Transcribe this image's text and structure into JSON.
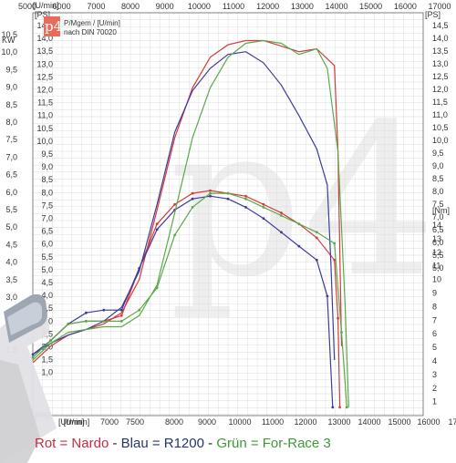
{
  "chart_data": {
    "type": "line",
    "top_axis_unit": "[U/min]",
    "bottom_axis_unit": "[U/min]",
    "left_axis_unit": "KW",
    "left_axis_unit2": "[PS]",
    "right_axis_unit": "[PS]",
    "torque_axis_unit": "[Nm]",
    "logo": "p4",
    "info_line1": "P/Mgem / [U/min]",
    "info_line2": "nach DIN 70020",
    "top_ticks": [
      "5000",
      "6000",
      "7000",
      "8000",
      "9000",
      "10000",
      "11000",
      "12000",
      "13000",
      "14000",
      "15000",
      "16000",
      "17000"
    ],
    "bottom_ticks": [
      "[U/min]",
      "7000",
      "7500",
      "8000",
      "9000",
      "10000",
      "11000",
      "12000",
      "13000",
      "14000",
      "15000",
      "16000",
      "17000"
    ],
    "left_ps_ticks": [
      "14,5",
      "14,0",
      "13,5",
      "13,0",
      "12,5",
      "12,0",
      "11,5",
      "11,0",
      "10,5",
      "10,0",
      "9,5",
      "9,0",
      "8,5",
      "8,0",
      "7,5",
      "7,0",
      "6,5",
      "6,0",
      "5,5",
      "5,0",
      "4,5",
      "4,0",
      "3,5",
      "3,0",
      "2,5",
      "2,0",
      "1,5",
      "1,0"
    ],
    "left_kw_ticks": [
      "10,5",
      "10,0",
      "9,5",
      "9,0",
      "8,5",
      "8,0",
      "7,5",
      "7,0",
      "6,5",
      "6,0",
      "5,5",
      "5,0",
      "4,5",
      "4,0",
      "3,5",
      "3,0",
      "2,5",
      "2,0",
      "1,5",
      "1,0"
    ],
    "right_ps_ticks": [
      "14,5",
      "14,0",
      "13,5",
      "13,0",
      "12,5",
      "12,0",
      "11,5",
      "11,0",
      "10,5",
      "10,0",
      "9,5",
      "9,0",
      "8,5",
      "8,0",
      "7,5",
      "7,0",
      "6,5",
      "6,0",
      "5,5",
      "5,0"
    ],
    "right_nm_ticks": [
      "14",
      "13",
      "12",
      "11",
      "10",
      "9",
      "8",
      "7",
      "6",
      "5",
      "4",
      "3",
      "2",
      "1"
    ],
    "x_range": [
      6000,
      17000
    ],
    "power_range_ps": [
      0,
      14.5
    ],
    "torque_range_nm": [
      0,
      14.5
    ],
    "grid": true,
    "series": [
      {
        "color": "#d63a3a",
        "power": [
          [
            6000,
            1.9
          ],
          [
            6500,
            2.5
          ],
          [
            7000,
            2.9
          ],
          [
            7500,
            3.1
          ],
          [
            8000,
            3.3
          ],
          [
            8500,
            3.7
          ],
          [
            9000,
            4.9
          ],
          [
            9500,
            7.4
          ],
          [
            10000,
            10.0
          ],
          [
            10500,
            11.8
          ],
          [
            11000,
            12.9
          ],
          [
            11500,
            13.35
          ],
          [
            12000,
            13.5
          ],
          [
            12500,
            13.5
          ],
          [
            13000,
            13.3
          ],
          [
            13500,
            13.1
          ],
          [
            14000,
            13.2
          ],
          [
            14500,
            12.6
          ],
          [
            14600,
            9.5
          ],
          [
            14700,
            2.5
          ]
        ],
        "torque": [
          [
            6000,
            2.1
          ],
          [
            6500,
            2.7
          ],
          [
            7000,
            3.3
          ],
          [
            7500,
            3.4
          ],
          [
            8000,
            3.4
          ],
          [
            8500,
            3.6
          ],
          [
            9000,
            5.3
          ],
          [
            9500,
            6.9
          ],
          [
            10000,
            7.6
          ],
          [
            10500,
            8.0
          ],
          [
            11000,
            8.1
          ],
          [
            11500,
            8.0
          ],
          [
            12000,
            7.9
          ],
          [
            12500,
            7.6
          ],
          [
            13000,
            7.3
          ],
          [
            13500,
            6.9
          ],
          [
            14000,
            6.4
          ],
          [
            14500,
            5.6
          ],
          [
            14600,
            3.5
          ],
          [
            14650,
            0.3
          ]
        ]
      },
      {
        "color": "#3c3c9c",
        "power": [
          [
            6000,
            2.2
          ],
          [
            6500,
            2.6
          ],
          [
            7000,
            2.9
          ],
          [
            7500,
            3.1
          ],
          [
            8000,
            3.4
          ],
          [
            8500,
            3.9
          ],
          [
            9000,
            5.2
          ],
          [
            9500,
            7.6
          ],
          [
            10000,
            10.2
          ],
          [
            10500,
            11.7
          ],
          [
            11000,
            12.5
          ],
          [
            11500,
            13.0
          ],
          [
            12000,
            13.1
          ],
          [
            12500,
            12.7
          ],
          [
            13000,
            11.9
          ],
          [
            13500,
            10.8
          ],
          [
            14000,
            9.6
          ],
          [
            14300,
            8.3
          ],
          [
            14400,
            5.5
          ],
          [
            14500,
            2.0
          ]
        ],
        "torque": [
          [
            6000,
            2.2
          ],
          [
            6500,
            2.7
          ],
          [
            7000,
            3.3
          ],
          [
            7500,
            3.7
          ],
          [
            8000,
            3.8
          ],
          [
            8500,
            3.8
          ],
          [
            9000,
            5.3
          ],
          [
            9500,
            6.7
          ],
          [
            10000,
            7.4
          ],
          [
            10500,
            7.8
          ],
          [
            11000,
            7.9
          ],
          [
            11500,
            7.8
          ],
          [
            12000,
            7.5
          ],
          [
            12500,
            7.1
          ],
          [
            13000,
            6.6
          ],
          [
            13500,
            6.1
          ],
          [
            14000,
            5.6
          ],
          [
            14300,
            4.3
          ],
          [
            14450,
            0.3
          ]
        ]
      },
      {
        "color": "#5aaa4a",
        "power": [
          [
            6000,
            2.0
          ],
          [
            6500,
            2.6
          ],
          [
            7000,
            3.0
          ],
          [
            7500,
            3.1
          ],
          [
            8000,
            3.2
          ],
          [
            8500,
            3.2
          ],
          [
            9000,
            3.6
          ],
          [
            9500,
            4.7
          ],
          [
            10000,
            7.3
          ],
          [
            10500,
            10.0
          ],
          [
            11000,
            11.8
          ],
          [
            11500,
            12.9
          ],
          [
            12000,
            13.4
          ],
          [
            12500,
            13.5
          ],
          [
            13000,
            13.4
          ],
          [
            13500,
            13.0
          ],
          [
            14000,
            13.2
          ],
          [
            14300,
            12.5
          ],
          [
            14600,
            9.5
          ],
          [
            14800,
            4.0
          ],
          [
            14900,
            0.3
          ]
        ],
        "torque": [
          [
            6000,
            2.1
          ],
          [
            6500,
            2.7
          ],
          [
            7000,
            3.3
          ],
          [
            7500,
            3.4
          ],
          [
            8000,
            3.4
          ],
          [
            8500,
            3.4
          ],
          [
            9000,
            3.8
          ],
          [
            9500,
            4.6
          ],
          [
            10000,
            6.5
          ],
          [
            10500,
            7.5
          ],
          [
            11000,
            8.0
          ],
          [
            11500,
            8.0
          ],
          [
            12000,
            7.8
          ],
          [
            12500,
            7.5
          ],
          [
            13000,
            7.2
          ],
          [
            13500,
            6.9
          ],
          [
            14000,
            6.6
          ],
          [
            14500,
            6.2
          ],
          [
            14700,
            3.0
          ],
          [
            14850,
            0.3
          ]
        ]
      }
    ]
  },
  "legend": {
    "red_text": "Rot = Nardo",
    "sep1": " - ",
    "blue_text": "Blau = R1200",
    "sep2": " - ",
    "green_text": "Grün = For-Race 3",
    "red_color": "#cc2a44",
    "blue_color": "#27356e",
    "green_color": "#3f9a36",
    "sep_color": "#222222"
  }
}
